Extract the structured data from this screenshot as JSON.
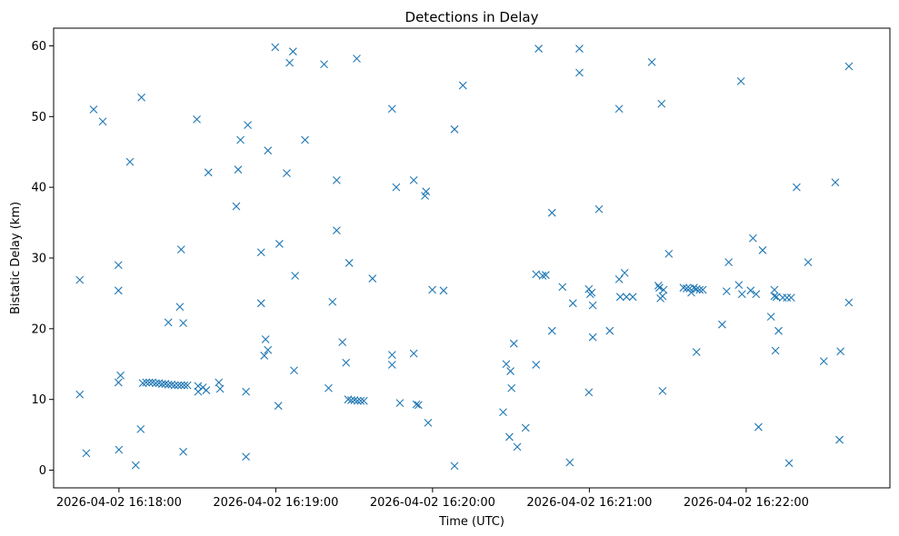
{
  "chart_data": {
    "type": "scatter",
    "title": "Detections in Delay",
    "xlabel": "Time (UTC)",
    "ylabel": "Bistatic Delay (km)",
    "x_ticks": [
      "2026-04-02 16:18:00",
      "2026-04-02 16:19:00",
      "2026-04-02 16:20:00",
      "2026-04-02 16:21:00",
      "2026-04-02 16:22:00"
    ],
    "y_ticks": [
      0,
      10,
      20,
      30,
      40,
      50,
      60
    ],
    "xlim": [
      "2026-04-02 16:17:35",
      "2026-04-02 16:22:55"
    ],
    "ylim": [
      -2.5,
      62.5
    ],
    "marker": "x",
    "color": "#1f77b4",
    "grid": false,
    "points": [
      {
        "t": "2026-04-02 16:17:45.0",
        "y": 26.9
      },
      {
        "t": "2026-04-02 16:17:45.0",
        "y": 10.7
      },
      {
        "t": "2026-04-02 16:17:47.5",
        "y": 2.4
      },
      {
        "t": "2026-04-02 16:17:50.3",
        "y": 51.0
      },
      {
        "t": "2026-04-02 16:17:53.8",
        "y": 49.3
      },
      {
        "t": "2026-04-02 16:17:59.8",
        "y": 29.0
      },
      {
        "t": "2026-04-02 16:17:59.8",
        "y": 25.4
      },
      {
        "t": "2026-04-02 16:17:59.8",
        "y": 12.4
      },
      {
        "t": "2026-04-02 16:18:00.6",
        "y": 13.4
      },
      {
        "t": "2026-04-02 16:18:00.0",
        "y": 2.9
      },
      {
        "t": "2026-04-02 16:18:04.2",
        "y": 43.6
      },
      {
        "t": "2026-04-02 16:18:06.4",
        "y": 0.7
      },
      {
        "t": "2026-04-02 16:18:08.6",
        "y": 52.7
      },
      {
        "t": "2026-04-02 16:18:08.3",
        "y": 5.8
      },
      {
        "t": "2026-04-02 16:18:09.1",
        "y": 12.3
      },
      {
        "t": "2026-04-02 16:18:10.4",
        "y": 12.4
      },
      {
        "t": "2026-04-02 16:18:11.6",
        "y": 12.4
      },
      {
        "t": "2026-04-02 16:18:12.8",
        "y": 12.4
      },
      {
        "t": "2026-04-02 16:18:14.1",
        "y": 12.3
      },
      {
        "t": "2026-04-02 16:18:15.3",
        "y": 12.3
      },
      {
        "t": "2026-04-02 16:18:16.5",
        "y": 12.2
      },
      {
        "t": "2026-04-02 16:18:17.7",
        "y": 12.2
      },
      {
        "t": "2026-04-02 16:18:18.9",
        "y": 20.9
      },
      {
        "t": "2026-04-02 16:18:18.9",
        "y": 12.1
      },
      {
        "t": "2026-04-02 16:18:20.1",
        "y": 12.1
      },
      {
        "t": "2026-04-02 16:18:21.3",
        "y": 12.0
      },
      {
        "t": "2026-04-02 16:18:22.6",
        "y": 12.0
      },
      {
        "t": "2026-04-02 16:18:23.8",
        "y": 12.0
      },
      {
        "t": "2026-04-02 16:18:25.0",
        "y": 12.0
      },
      {
        "t": "2026-04-02 16:18:26.2",
        "y": 12.0
      },
      {
        "t": "2026-04-02 16:18:23.3",
        "y": 23.1
      },
      {
        "t": "2026-04-02 16:18:23.8",
        "y": 31.2
      },
      {
        "t": "2026-04-02 16:18:24.6",
        "y": 20.8
      },
      {
        "t": "2026-04-02 16:18:24.6",
        "y": 2.6
      },
      {
        "t": "2026-04-02 16:18:29.8",
        "y": 49.6
      },
      {
        "t": "2026-04-02 16:18:30.3",
        "y": 11.9
      },
      {
        "t": "2026-04-02 16:18:30.3",
        "y": 11.1
      },
      {
        "t": "2026-04-02 16:18:32.1",
        "y": 11.7
      },
      {
        "t": "2026-04-02 16:18:33.4",
        "y": 11.3
      },
      {
        "t": "2026-04-02 16:18:34.2",
        "y": 42.1
      },
      {
        "t": "2026-04-02 16:18:38.2",
        "y": 12.4
      },
      {
        "t": "2026-04-02 16:18:38.7",
        "y": 11.5
      },
      {
        "t": "2026-04-02 16:18:44.9",
        "y": 37.3
      },
      {
        "t": "2026-04-02 16:18:45.6",
        "y": 42.5
      },
      {
        "t": "2026-04-02 16:18:46.5",
        "y": 46.7
      },
      {
        "t": "2026-04-02 16:18:49.3",
        "y": 48.8
      },
      {
        "t": "2026-04-02 16:18:48.6",
        "y": 11.1
      },
      {
        "t": "2026-04-02 16:18:48.6",
        "y": 1.9
      },
      {
        "t": "2026-04-02 16:18:54.4",
        "y": 30.8
      },
      {
        "t": "2026-04-02 16:18:54.4",
        "y": 23.6
      },
      {
        "t": "2026-04-02 16:18:56.1",
        "y": 18.5
      },
      {
        "t": "2026-04-02 16:18:55.6",
        "y": 16.2
      },
      {
        "t": "2026-04-02 16:18:57.0",
        "y": 17.0
      },
      {
        "t": "2026-04-02 16:18:57.0",
        "y": 45.2
      },
      {
        "t": "2026-04-02 16:18:59.8",
        "y": 59.8
      },
      {
        "t": "2026-04-02 16:19:01.4",
        "y": 32.0
      },
      {
        "t": "2026-04-02 16:19:01.0",
        "y": 9.1
      },
      {
        "t": "2026-04-02 16:19:04.2",
        "y": 42.0
      },
      {
        "t": "2026-04-02 16:19:05.3",
        "y": 57.6
      },
      {
        "t": "2026-04-02 16:19:06.6",
        "y": 59.2
      },
      {
        "t": "2026-04-02 16:19:07.4",
        "y": 27.5
      },
      {
        "t": "2026-04-02 16:19:07.0",
        "y": 14.1
      },
      {
        "t": "2026-04-02 16:19:11.2",
        "y": 46.7
      },
      {
        "t": "2026-04-02 16:19:18.5",
        "y": 57.4
      },
      {
        "t": "2026-04-02 16:19:20.2",
        "y": 11.6
      },
      {
        "t": "2026-04-02 16:19:21.7",
        "y": 23.8
      },
      {
        "t": "2026-04-02 16:19:23.3",
        "y": 41.0
      },
      {
        "t": "2026-04-02 16:19:23.3",
        "y": 33.9
      },
      {
        "t": "2026-04-02 16:19:25.5",
        "y": 18.1
      },
      {
        "t": "2026-04-02 16:19:26.9",
        "y": 15.2
      },
      {
        "t": "2026-04-02 16:19:28.1",
        "y": 29.3
      },
      {
        "t": "2026-04-02 16:19:27.7",
        "y": 10.0
      },
      {
        "t": "2026-04-02 16:19:28.9",
        "y": 9.9
      },
      {
        "t": "2026-04-02 16:19:30.1",
        "y": 9.9
      },
      {
        "t": "2026-04-02 16:19:31.0",
        "y": 58.2
      },
      {
        "t": "2026-04-02 16:19:31.3",
        "y": 9.8
      },
      {
        "t": "2026-04-02 16:19:32.5",
        "y": 9.8
      },
      {
        "t": "2026-04-02 16:19:33.7",
        "y": 9.8
      },
      {
        "t": "2026-04-02 16:19:37.0",
        "y": 27.1
      },
      {
        "t": "2026-04-02 16:19:44.5",
        "y": 51.1
      },
      {
        "t": "2026-04-02 16:19:44.5",
        "y": 16.3
      },
      {
        "t": "2026-04-02 16:19:44.5",
        "y": 14.9
      },
      {
        "t": "2026-04-02 16:19:46.1",
        "y": 40.0
      },
      {
        "t": "2026-04-02 16:19:47.5",
        "y": 9.5
      },
      {
        "t": "2026-04-02 16:19:52.8",
        "y": 41.0
      },
      {
        "t": "2026-04-02 16:19:52.8",
        "y": 16.5
      },
      {
        "t": "2026-04-02 16:19:53.8",
        "y": 9.3
      },
      {
        "t": "2026-04-02 16:19:54.6",
        "y": 9.2
      },
      {
        "t": "2026-04-02 16:19:57.1",
        "y": 38.8
      },
      {
        "t": "2026-04-02 16:19:57.5",
        "y": 39.4
      },
      {
        "t": "2026-04-02 16:19:58.3",
        "y": 6.7
      },
      {
        "t": "2026-04-02 16:19:59.9",
        "y": 25.5
      },
      {
        "t": "2026-04-02 16:20:04.2",
        "y": 25.4
      },
      {
        "t": "2026-04-02 16:20:08.4",
        "y": 48.2
      },
      {
        "t": "2026-04-02 16:20:08.4",
        "y": 0.6
      },
      {
        "t": "2026-04-02 16:20:11.6",
        "y": 54.4
      },
      {
        "t": "2026-04-02 16:20:27.0",
        "y": 8.2
      },
      {
        "t": "2026-04-02 16:20:28.2",
        "y": 15.0
      },
      {
        "t": "2026-04-02 16:20:29.4",
        "y": 4.7
      },
      {
        "t": "2026-04-02 16:20:29.8",
        "y": 14.0
      },
      {
        "t": "2026-04-02 16:20:30.2",
        "y": 11.6
      },
      {
        "t": "2026-04-02 16:20:31.1",
        "y": 17.9
      },
      {
        "t": "2026-04-02 16:20:32.4",
        "y": 3.3
      },
      {
        "t": "2026-04-02 16:20:35.6",
        "y": 6.0
      },
      {
        "t": "2026-04-02 16:20:40.6",
        "y": 59.6
      },
      {
        "t": "2026-04-02 16:20:39.6",
        "y": 27.7
      },
      {
        "t": "2026-04-02 16:20:39.6",
        "y": 14.9
      },
      {
        "t": "2026-04-02 16:20:42.1",
        "y": 27.5
      },
      {
        "t": "2026-04-02 16:20:43.3",
        "y": 27.6
      },
      {
        "t": "2026-04-02 16:20:45.7",
        "y": 36.4
      },
      {
        "t": "2026-04-02 16:20:45.7",
        "y": 19.7
      },
      {
        "t": "2026-04-02 16:20:49.7",
        "y": 25.9
      },
      {
        "t": "2026-04-02 16:20:52.5",
        "y": 1.1
      },
      {
        "t": "2026-04-02 16:20:53.7",
        "y": 23.6
      },
      {
        "t": "2026-04-02 16:20:56.2",
        "y": 59.6
      },
      {
        "t": "2026-04-02 16:20:56.2",
        "y": 56.2
      },
      {
        "t": "2026-04-02 16:20:59.8",
        "y": 25.6
      },
      {
        "t": "2026-04-02 16:21:00.3",
        "y": 24.9
      },
      {
        "t": "2026-04-02 16:21:00.9",
        "y": 25.1
      },
      {
        "t": "2026-04-02 16:20:59.8",
        "y": 11.0
      },
      {
        "t": "2026-04-02 16:21:01.3",
        "y": 23.3
      },
      {
        "t": "2026-04-02 16:21:01.3",
        "y": 18.8
      },
      {
        "t": "2026-04-02 16:21:03.7",
        "y": 36.9
      },
      {
        "t": "2026-04-02 16:21:07.8",
        "y": 19.7
      },
      {
        "t": "2026-04-02 16:21:11.4",
        "y": 51.1
      },
      {
        "t": "2026-04-02 16:21:11.4",
        "y": 27.0
      },
      {
        "t": "2026-04-02 16:21:11.8",
        "y": 24.5
      },
      {
        "t": "2026-04-02 16:21:13.5",
        "y": 27.9
      },
      {
        "t": "2026-04-02 16:21:14.2",
        "y": 24.5
      },
      {
        "t": "2026-04-02 16:21:16.6",
        "y": 24.5
      },
      {
        "t": "2026-04-02 16:21:23.9",
        "y": 57.7
      },
      {
        "t": "2026-04-02 16:21:26.4",
        "y": 26.1
      },
      {
        "t": "2026-04-02 16:21:26.8",
        "y": 25.8
      },
      {
        "t": "2026-04-02 16:21:27.2",
        "y": 24.3
      },
      {
        "t": "2026-04-02 16:21:28.0",
        "y": 24.6
      },
      {
        "t": "2026-04-02 16:21:27.6",
        "y": 51.8
      },
      {
        "t": "2026-04-02 16:21:28.4",
        "y": 25.5
      },
      {
        "t": "2026-04-02 16:21:28.0",
        "y": 11.2
      },
      {
        "t": "2026-04-02 16:21:30.4",
        "y": 30.6
      },
      {
        "t": "2026-04-02 16:21:36.0",
        "y": 25.8
      },
      {
        "t": "2026-04-02 16:21:37.2",
        "y": 25.7
      },
      {
        "t": "2026-04-02 16:21:38.4",
        "y": 25.7
      },
      {
        "t": "2026-04-02 16:21:39.0",
        "y": 25.1
      },
      {
        "t": "2026-04-02 16:21:40.0",
        "y": 25.8
      },
      {
        "t": "2026-04-02 16:21:41.0",
        "y": 25.6
      },
      {
        "t": "2026-04-02 16:21:42.2",
        "y": 25.5
      },
      {
        "t": "2026-04-02 16:21:43.4",
        "y": 25.5
      },
      {
        "t": "2026-04-02 16:21:41.0",
        "y": 16.7
      },
      {
        "t": "2026-04-02 16:21:50.8",
        "y": 20.6
      },
      {
        "t": "2026-04-02 16:21:52.5",
        "y": 25.3
      },
      {
        "t": "2026-04-02 16:21:53.3",
        "y": 29.4
      },
      {
        "t": "2026-04-02 16:21:57.2",
        "y": 26.2
      },
      {
        "t": "2026-04-02 16:21:58.0",
        "y": 55.0
      },
      {
        "t": "2026-04-02 16:21:58.4",
        "y": 24.9
      },
      {
        "t": "2026-04-02 16:22:01.7",
        "y": 25.4
      },
      {
        "t": "2026-04-02 16:22:02.6",
        "y": 32.8
      },
      {
        "t": "2026-04-02 16:22:03.8",
        "y": 24.9
      },
      {
        "t": "2026-04-02 16:22:04.7",
        "y": 6.1
      },
      {
        "t": "2026-04-02 16:22:06.3",
        "y": 31.1
      },
      {
        "t": "2026-04-02 16:22:09.5",
        "y": 21.7
      },
      {
        "t": "2026-04-02 16:22:10.8",
        "y": 25.5
      },
      {
        "t": "2026-04-02 16:22:10.8",
        "y": 24.6
      },
      {
        "t": "2026-04-02 16:22:11.2",
        "y": 16.9
      },
      {
        "t": "2026-04-02 16:22:11.6",
        "y": 24.5
      },
      {
        "t": "2026-04-02 16:22:12.4",
        "y": 19.7
      },
      {
        "t": "2026-04-02 16:22:14.0",
        "y": 24.4
      },
      {
        "t": "2026-04-02 16:22:15.6",
        "y": 24.4
      },
      {
        "t": "2026-04-02 16:22:16.4",
        "y": 1.0
      },
      {
        "t": "2026-04-02 16:22:17.2",
        "y": 24.4
      },
      {
        "t": "2026-04-02 16:22:19.3",
        "y": 40.0
      },
      {
        "t": "2026-04-02 16:22:23.7",
        "y": 29.4
      },
      {
        "t": "2026-04-02 16:22:29.7",
        "y": 15.4
      },
      {
        "t": "2026-04-02 16:22:34.1",
        "y": 40.7
      },
      {
        "t": "2026-04-02 16:22:35.7",
        "y": 4.3
      },
      {
        "t": "2026-04-02 16:22:36.1",
        "y": 16.8
      },
      {
        "t": "2026-04-02 16:22:39.3",
        "y": 57.1
      },
      {
        "t": "2026-04-02 16:22:39.3",
        "y": 23.7
      }
    ]
  }
}
